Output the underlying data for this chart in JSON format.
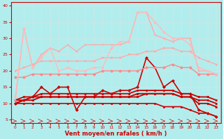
{
  "xlabel": "Vent moyen/en rafales ( km/h )",
  "background_color": "#b2eded",
  "grid_color": "#c8e8e8",
  "xlim": [
    -0.5,
    23.5
  ],
  "ylim": [
    4,
    41
  ],
  "yticks": [
    5,
    10,
    15,
    20,
    25,
    30,
    35,
    40
  ],
  "xticks": [
    0,
    1,
    2,
    3,
    4,
    5,
    6,
    7,
    8,
    9,
    10,
    11,
    12,
    13,
    14,
    15,
    16,
    17,
    18,
    19,
    20,
    21,
    22,
    23
  ],
  "series": [
    {
      "y": [
        10,
        10,
        10,
        10,
        10,
        10,
        10,
        10,
        10,
        10,
        10,
        10,
        10,
        10,
        10,
        10,
        10,
        9,
        9,
        9,
        8,
        7,
        7,
        6
      ],
      "color": "#cc0000",
      "lw": 1.2,
      "marker": "s",
      "ms": 2.0
    },
    {
      "y": [
        10,
        11,
        12,
        15,
        13,
        15,
        15,
        8,
        12,
        12,
        14,
        13,
        14,
        14,
        15,
        24,
        21,
        15,
        17,
        13,
        13,
        8,
        7,
        6
      ],
      "color": "#cc0000",
      "lw": 1.2,
      "marker": "D",
      "ms": 2.0
    },
    {
      "y": [
        10,
        11,
        11,
        12,
        12,
        12,
        12,
        12,
        12,
        12,
        12,
        12,
        12,
        12,
        13,
        13,
        13,
        13,
        13,
        12,
        12,
        10,
        10,
        9
      ],
      "color": "#bb0000",
      "lw": 1.3,
      "marker": "o",
      "ms": 1.8
    },
    {
      "y": [
        11,
        11,
        12,
        12,
        12,
        12,
        12,
        12,
        12,
        12,
        12,
        12,
        12,
        12,
        12,
        13,
        13,
        13,
        13,
        12,
        12,
        11,
        11,
        10
      ],
      "color": "#cc0000",
      "lw": 1.3,
      "marker": "o",
      "ms": 1.8
    },
    {
      "y": [
        11,
        12,
        12,
        13,
        13,
        13,
        13,
        13,
        13,
        13,
        13,
        13,
        13,
        13,
        14,
        14,
        14,
        14,
        14,
        13,
        13,
        12,
        12,
        11
      ],
      "color": "#cc0000",
      "lw": 1.3,
      "marker": "o",
      "ms": 1.8
    },
    {
      "y": [
        18,
        18,
        19,
        19,
        19,
        19,
        19,
        19,
        19,
        19,
        20,
        20,
        20,
        20,
        20,
        21,
        21,
        21,
        22,
        21,
        21,
        19,
        19,
        19
      ],
      "color": "#ff8888",
      "lw": 1.0,
      "marker": "D",
      "ms": 2.0
    },
    {
      "y": [
        20,
        21,
        22,
        23,
        23,
        23,
        23,
        23,
        23,
        23,
        24,
        24,
        24,
        25,
        25,
        26,
        26,
        27,
        27,
        26,
        26,
        24,
        23,
        22
      ],
      "color": "#ffaaaa",
      "lw": 1.0,
      "marker": "v",
      "ms": 2.0
    },
    {
      "y": [
        11,
        33,
        21,
        25,
        27,
        26,
        28,
        26,
        28,
        28,
        28,
        28,
        28,
        29,
        38,
        38,
        31,
        30,
        29,
        30,
        30,
        20,
        20,
        19
      ],
      "color": "#ffaaaa",
      "lw": 1.0,
      "marker": "+",
      "ms": 3.0
    },
    {
      "y": [
        12,
        33,
        21,
        24,
        27,
        20,
        21,
        20,
        20,
        21,
        21,
        27,
        29,
        29,
        38,
        38,
        35,
        32,
        30,
        30,
        28,
        21,
        20,
        19
      ],
      "color": "#ffbbbb",
      "lw": 1.0,
      "marker": "D",
      "ms": 1.8
    }
  ]
}
